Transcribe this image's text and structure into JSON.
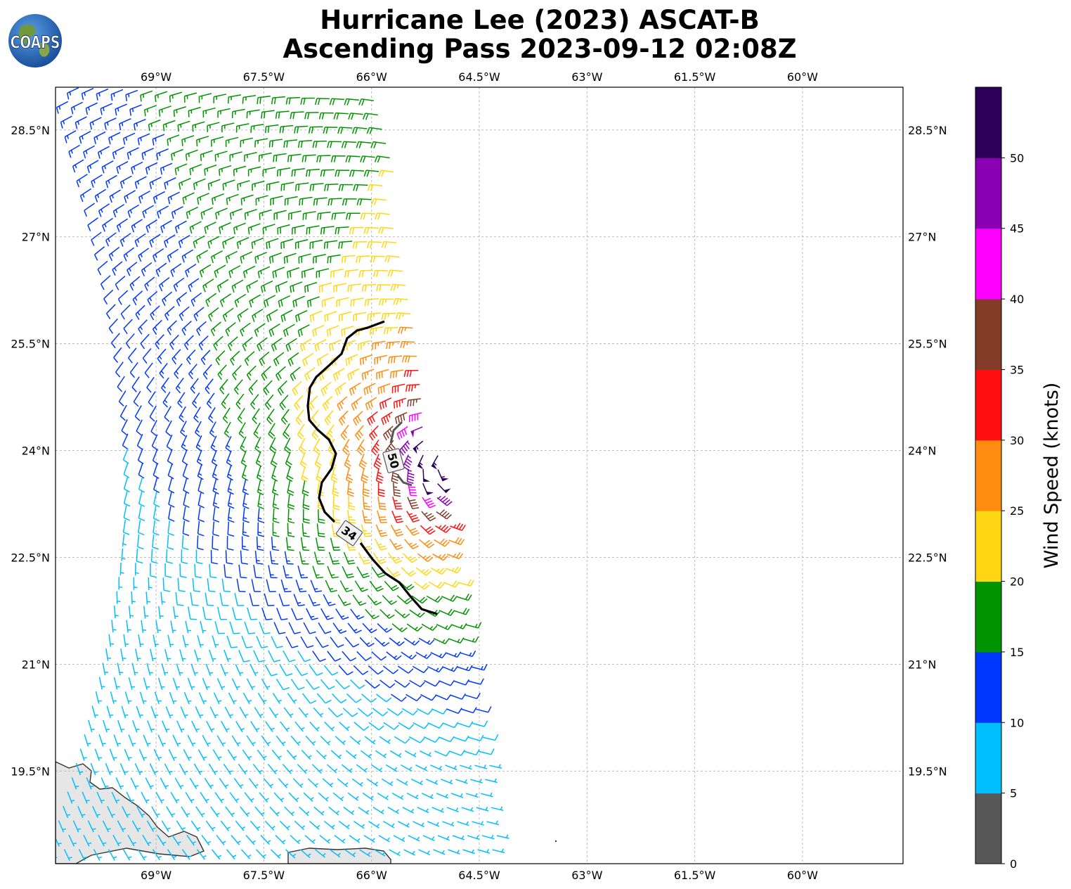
{
  "title": {
    "line1": "Hurricane Lee (2023) ASCAT-B",
    "line2": "Ascending Pass 2023-09-12 02:08Z"
  },
  "logo": {
    "text": "COAPS",
    "icon": "globe-logo-icon"
  },
  "map": {
    "lon_range": [
      -70.4,
      -58.6
    ],
    "lat_range": [
      18.2,
      29.1
    ],
    "lon_ticks": [
      "69°W",
      "67.5°W",
      "66°W",
      "64.5°W",
      "63°W",
      "61.5°W",
      "60°W"
    ],
    "lon_tick_values": [
      -69,
      -67.5,
      -66,
      -64.5,
      -63,
      -61.5,
      -60
    ],
    "lat_ticks": [
      "28.5°N",
      "27°N",
      "25.5°N",
      "24°N",
      "22.5°N",
      "21°N",
      "19.5°N"
    ],
    "lat_tick_values": [
      28.5,
      27,
      25.5,
      24,
      22.5,
      21,
      19.5
    ],
    "grid": true,
    "storm_center": {
      "lon": -64.9,
      "lat": 23.9
    },
    "contours": [
      {
        "label": "34",
        "color": "#000000"
      },
      {
        "label": "50",
        "color": "#555555"
      }
    ]
  },
  "colorbar": {
    "label": "Wind Speed (knots)",
    "ticks": [
      "0",
      "5",
      "10",
      "15",
      "20",
      "25",
      "30",
      "35",
      "40",
      "45",
      "50"
    ],
    "bins": [
      {
        "from": 0,
        "to": 5,
        "color": "#585858"
      },
      {
        "from": 5,
        "to": 10,
        "color": "#00bfff"
      },
      {
        "from": 10,
        "to": 15,
        "color": "#0037ff"
      },
      {
        "from": 15,
        "to": 20,
        "color": "#009400"
      },
      {
        "from": 20,
        "to": 25,
        "color": "#ffd614"
      },
      {
        "from": 25,
        "to": 30,
        "color": "#ff8c0f"
      },
      {
        "from": 30,
        "to": 35,
        "color": "#ff0f0f"
      },
      {
        "from": 35,
        "to": 40,
        "color": "#823c28"
      },
      {
        "from": 40,
        "to": 45,
        "color": "#ff00ff"
      },
      {
        "from": 45,
        "to": 50,
        "color": "#8c00b4"
      },
      {
        "from": 50,
        "to": 55,
        "color": "#2d005a"
      }
    ]
  }
}
